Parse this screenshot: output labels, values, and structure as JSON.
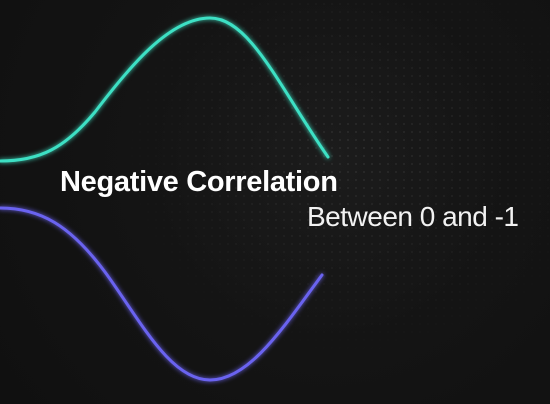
{
  "title": "Negative Correlation",
  "subtitle": "Between 0 and -1",
  "colors": {
    "background": "#121212",
    "top_wave": "#3ee0c4",
    "bottom_wave": "#6b63f0"
  }
}
